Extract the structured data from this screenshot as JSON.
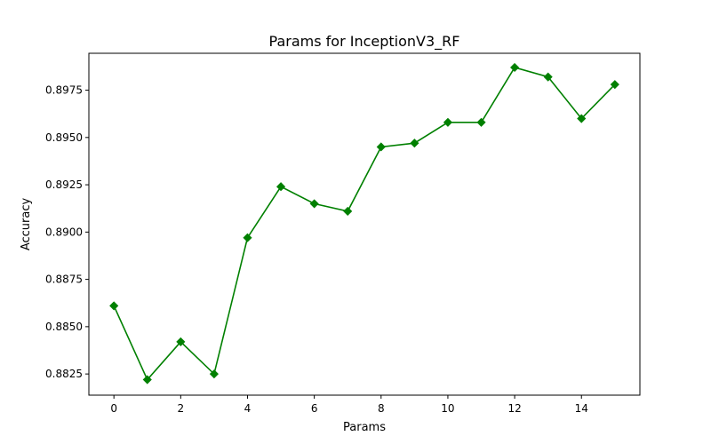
{
  "chart_data": {
    "type": "line",
    "title": "Params for InceptionV3_RF",
    "xlabel": "Params",
    "ylabel": "Accuracy",
    "xlim": [
      -0.75,
      15.75
    ],
    "ylim": [
      0.88138,
      0.89945
    ],
    "x_ticks": [
      0,
      2,
      4,
      6,
      8,
      10,
      12,
      14
    ],
    "y_ticks": [
      0.8825,
      0.885,
      0.8875,
      0.89,
      0.8925,
      0.895,
      0.8975
    ],
    "y_tick_labels": [
      "0.8825",
      "0.8850",
      "0.8875",
      "0.8900",
      "0.8925",
      "0.8950",
      "0.8975"
    ],
    "grid": false,
    "legend": "none",
    "series": [
      {
        "color": "#008000",
        "marker": "diamond",
        "x": [
          0,
          1,
          2,
          3,
          4,
          5,
          6,
          7,
          8,
          9,
          10,
          11,
          12,
          13,
          14,
          15
        ],
        "values": [
          0.8861,
          0.8822,
          0.8842,
          0.8825,
          0.8897,
          0.8924,
          0.8915,
          0.8911,
          0.8945,
          0.8947,
          0.8958,
          0.8958,
          0.8987,
          0.8982,
          0.896,
          0.8978
        ]
      }
    ]
  }
}
